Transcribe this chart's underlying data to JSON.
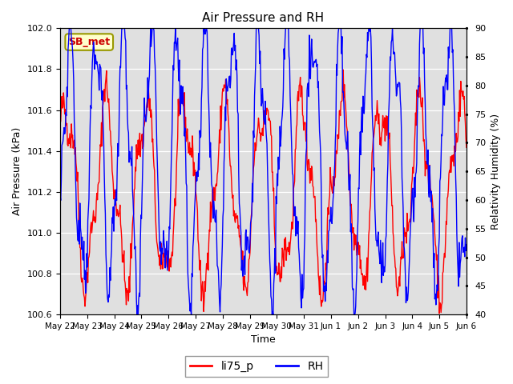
{
  "title": "Air Pressure and RH",
  "xlabel": "Time",
  "ylabel_left": "Air Pressure (kPa)",
  "ylabel_right": "Relativity Humidity (%)",
  "annotation": "SB_met",
  "ylim_left": [
    100.6,
    102.0
  ],
  "ylim_right": [
    40,
    90
  ],
  "yticks_left": [
    100.6,
    100.8,
    101.0,
    101.2,
    101.4,
    101.6,
    101.8,
    102.0
  ],
  "yticks_right": [
    40,
    45,
    50,
    55,
    60,
    65,
    70,
    75,
    80,
    85,
    90
  ],
  "x_tick_labels": [
    "May 22",
    "May 23",
    "May 24",
    "May 25",
    "May 26",
    "May 27",
    "May 28",
    "May 29",
    "May 30",
    "May 31",
    "Jun 1",
    "Jun 2",
    "Jun 3",
    "Jun 4",
    "Jun 5",
    "Jun 6"
  ],
  "line_color_pressure": "#ff0000",
  "line_color_rh": "#0000ff",
  "legend_pressure": "li75_p",
  "legend_rh": "RH",
  "background_color": "#ffffff",
  "plot_bg_color": "#e0e0e0",
  "grid_color": "#ffffff",
  "annotation_bg": "#ffffcc",
  "annotation_border": "#999900",
  "annotation_text_color": "#cc0000"
}
